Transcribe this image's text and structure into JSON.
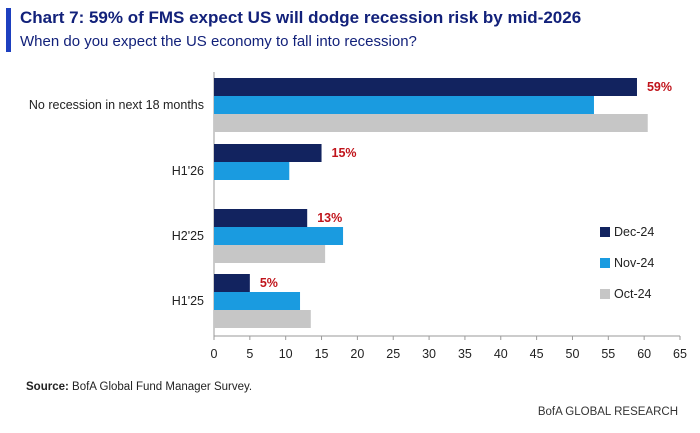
{
  "header": {
    "title": "Chart 7: 59% of FMS expect US will dodge recession risk by mid-2026",
    "subtitle": "When do you expect the US economy to fall into recession?"
  },
  "source": {
    "label": "Source:",
    "text": " BofA Global Fund Manager Survey."
  },
  "footer": {
    "brand": "BofA GLOBAL RESEARCH"
  },
  "chart_data": {
    "type": "bar",
    "orientation": "horizontal",
    "categories": [
      "No recession in next 18 months",
      "H1'26",
      "H2'25",
      "H1'25"
    ],
    "series": [
      {
        "name": "Dec-24",
        "color": "#12235f",
        "values": [
          59,
          15,
          13,
          5
        ]
      },
      {
        "name": "Nov-24",
        "color": "#1a9be0",
        "values": [
          53,
          10.5,
          18,
          12
        ]
      },
      {
        "name": "Oct-24",
        "color": "#c6c6c6",
        "values": [
          60.5,
          null,
          15.5,
          13.5
        ]
      }
    ],
    "data_labels": [
      {
        "series": "Dec-24",
        "category": "No recession in next 18 months",
        "text": "59%"
      },
      {
        "series": "Dec-24",
        "category": "H1'26",
        "text": "15%"
      },
      {
        "series": "Dec-24",
        "category": "H2'25",
        "text": "13%"
      },
      {
        "series": "Dec-24",
        "category": "H1'25",
        "text": "5%"
      }
    ],
    "data_label_color": "#c0141b",
    "xlim": [
      0,
      65
    ],
    "xticks": [
      "0",
      "5",
      "10",
      "15",
      "20",
      "25",
      "30",
      "35",
      "40",
      "45",
      "50",
      "55",
      "60",
      "65"
    ],
    "xlabel": "",
    "ylabel": "",
    "grid": false,
    "legend_position": "right"
  }
}
